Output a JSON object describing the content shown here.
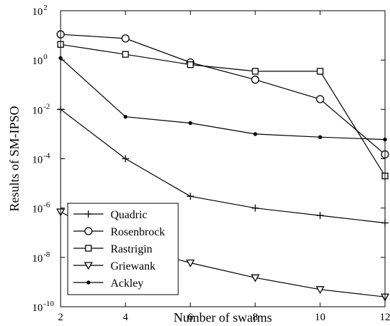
{
  "chart_data": {
    "type": "line",
    "title": "",
    "xlabel": "Number of swarms",
    "ylabel": "Results of SM-IPSO",
    "x": [
      2,
      4,
      6,
      8,
      10,
      12
    ],
    "xlim": [
      2,
      12
    ],
    "ylim": [
      1e-10,
      100
    ],
    "yscale": "log",
    "x_ticks": [
      "2",
      "4",
      "6",
      "8",
      "10",
      "12"
    ],
    "y_ticks": [
      {
        "base": "10",
        "exp": "-10"
      },
      {
        "base": "10",
        "exp": "-8"
      },
      {
        "base": "10",
        "exp": "-6"
      },
      {
        "base": "10",
        "exp": "-4"
      },
      {
        "base": "10",
        "exp": "-2"
      },
      {
        "base": "10",
        "exp": "0"
      },
      {
        "base": "10",
        "exp": "2"
      }
    ],
    "grid": false,
    "legend_position": "bottom-left",
    "series": [
      {
        "name": "Quadric",
        "marker": "plus",
        "values": [
          0.01,
          0.0001,
          3e-06,
          1e-06,
          5e-07,
          2.5e-07
        ]
      },
      {
        "name": "Rosenbrock",
        "marker": "circle",
        "values": [
          11,
          7.5,
          0.8,
          0.16,
          0.026,
          0.00015
        ]
      },
      {
        "name": "Rastrigin",
        "marker": "square",
        "values": [
          4.3,
          1.7,
          0.65,
          0.35,
          0.35,
          2e-05
        ]
      },
      {
        "name": "Griewank",
        "marker": "triangle-down",
        "values": [
          7e-07,
          3e-08,
          6e-09,
          1.5e-09,
          5e-10,
          2.5e-10
        ]
      },
      {
        "name": "Ackley",
        "marker": "dot",
        "values": [
          1.2,
          0.005,
          0.0028,
          0.001,
          0.00075,
          0.0006
        ]
      }
    ]
  }
}
